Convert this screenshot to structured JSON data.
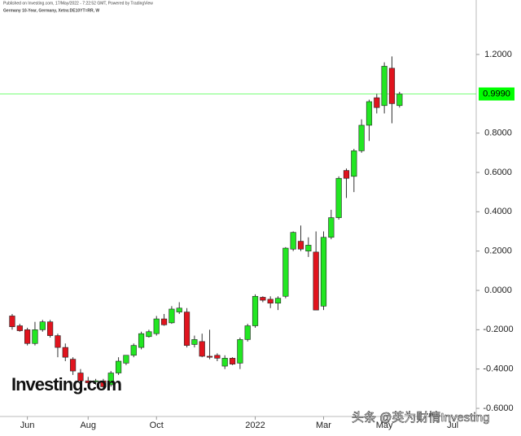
{
  "chart_data": {
    "type": "candlestick",
    "published": "Published on Investing.com, 17/May/2022 - 7:22:52 GMT, Powered by TradingView",
    "title": "Germany 10-Year, Germany, Xetra:DE10YT=RR, W",
    "watermark": "Investing.com",
    "credit": "头条 @英为财情Investing",
    "categories": [
      null,
      null,
      "Jun",
      null,
      null,
      null,
      null,
      null,
      null,
      null,
      "Aug",
      null,
      null,
      null,
      null,
      null,
      null,
      null,
      null,
      "Oct",
      null,
      null,
      null,
      null,
      null,
      null,
      null,
      null,
      null,
      null,
      null,
      null,
      "2022",
      null,
      null,
      null,
      null,
      null,
      null,
      null,
      null,
      "Mar",
      null,
      null,
      null,
      null,
      null,
      null,
      null,
      "May",
      null,
      null,
      null,
      null,
      null,
      null,
      null,
      null,
      "Jul",
      null,
      null,
      null
    ],
    "open": [
      -0.13,
      -0.18,
      -0.2,
      -0.27,
      -0.2,
      -0.16,
      -0.23,
      -0.29,
      -0.35,
      -0.42,
      -0.46,
      -0.465,
      -0.46,
      -0.48,
      -0.42,
      -0.37,
      -0.33,
      -0.29,
      -0.235,
      -0.22,
      -0.145,
      -0.165,
      -0.11,
      -0.11,
      -0.275,
      -0.26,
      -0.335,
      -0.33,
      -0.385,
      -0.345,
      -0.37,
      -0.25,
      -0.18,
      -0.035,
      -0.045,
      -0.065,
      -0.03,
      0.21,
      0.25,
      0.2,
      0.195,
      -0.08,
      0.27,
      0.37,
      0.61,
      0.58,
      0.71,
      0.84,
      0.98,
      0.94,
      1.13,
      0.94,
      null,
      null,
      null,
      null,
      null,
      null,
      null,
      null,
      null,
      null
    ],
    "high": [
      -0.12,
      -0.17,
      -0.19,
      -0.16,
      -0.15,
      -0.15,
      -0.22,
      -0.27,
      -0.34,
      -0.4,
      -0.44,
      -0.45,
      -0.45,
      -0.41,
      -0.34,
      -0.35,
      -0.27,
      -0.21,
      -0.2,
      -0.13,
      -0.12,
      -0.08,
      -0.06,
      -0.09,
      -0.23,
      -0.22,
      -0.2,
      -0.32,
      -0.33,
      -0.34,
      -0.24,
      -0.17,
      -0.02,
      -0.03,
      -0.03,
      -0.03,
      0.22,
      0.3,
      0.33,
      0.27,
      0.3,
      0.3,
      0.41,
      0.58,
      0.62,
      0.72,
      0.87,
      0.97,
      1.0,
      1.16,
      1.19,
      1.01,
      null,
      null,
      null,
      null,
      null,
      null,
      null,
      null,
      null,
      null
    ],
    "low": [
      -0.2,
      -0.21,
      -0.28,
      -0.28,
      -0.21,
      -0.24,
      -0.34,
      -0.36,
      -0.43,
      -0.48,
      -0.49,
      -0.48,
      -0.5,
      -0.49,
      -0.43,
      -0.38,
      -0.34,
      -0.3,
      -0.24,
      -0.23,
      -0.18,
      -0.17,
      -0.12,
      -0.29,
      -0.29,
      -0.34,
      -0.35,
      -0.36,
      -0.4,
      -0.38,
      -0.4,
      -0.26,
      -0.19,
      -0.06,
      -0.09,
      -0.1,
      -0.04,
      0.2,
      0.2,
      0.17,
      -0.1,
      -0.1,
      0.26,
      0.36,
      0.47,
      0.5,
      0.7,
      0.76,
      0.9,
      0.9,
      0.85,
      0.93,
      null,
      null,
      null,
      null,
      null,
      null,
      null,
      null,
      null,
      null
    ],
    "close": [
      -0.185,
      -0.205,
      -0.27,
      -0.2,
      -0.16,
      -0.23,
      -0.29,
      -0.34,
      -0.41,
      -0.46,
      -0.47,
      -0.46,
      -0.49,
      -0.42,
      -0.36,
      -0.33,
      -0.28,
      -0.22,
      -0.21,
      -0.145,
      -0.175,
      -0.095,
      -0.09,
      -0.28,
      -0.25,
      -0.335,
      -0.34,
      -0.345,
      -0.345,
      -0.375,
      -0.25,
      -0.18,
      -0.03,
      -0.05,
      -0.065,
      -0.04,
      0.215,
      0.295,
      0.21,
      0.23,
      -0.1,
      0.27,
      0.37,
      0.57,
      0.57,
      0.71,
      0.84,
      0.96,
      0.93,
      1.14,
      0.95,
      0.999,
      null,
      null,
      null,
      null,
      null,
      null,
      null,
      null,
      null,
      null
    ],
    "up_color": "#22e622",
    "down_color": "#e0141e",
    "last_price": {
      "value": 0.999,
      "label": "0.9990"
    },
    "last_price_color": "#00ff00",
    "ylim": [
      -0.633,
      1.477
    ],
    "yticks": [
      {
        "value": 1.2,
        "label": "1.2000"
      },
      {
        "value": 0.8,
        "label": "0.8000"
      },
      {
        "value": 0.6,
        "label": "0.6000"
      },
      {
        "value": 0.4,
        "label": "0.4000"
      },
      {
        "value": 0.2,
        "label": "0.2000"
      },
      {
        "value": 0,
        "label": "0.0000"
      },
      {
        "value": -0.2,
        "label": "-0.2000"
      },
      {
        "value": -0.4,
        "label": "-0.4000"
      },
      {
        "value": -0.6,
        "label": "-0.6000"
      }
    ]
  }
}
